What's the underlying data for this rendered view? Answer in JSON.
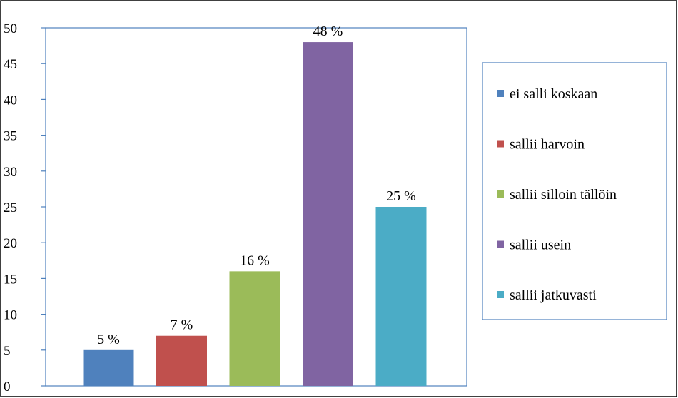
{
  "chart_data": {
    "type": "bar",
    "title": "",
    "xlabel": "",
    "ylabel": "",
    "ylim": [
      0,
      50
    ],
    "yticks": [
      0,
      5,
      10,
      15,
      20,
      25,
      30,
      35,
      40,
      45,
      50
    ],
    "grid": false,
    "legend_position": "right",
    "categories": [
      "ei salli koskaan",
      "sallii harvoin",
      "sallii silloin tällöin",
      "sallii usein",
      "sallii jatkuvasti"
    ],
    "values": [
      5,
      7,
      16,
      48,
      25
    ],
    "data_labels": [
      "5 %",
      "7 %",
      "16 %",
      "48 %",
      "25 %"
    ],
    "colors": [
      "#4F81BD",
      "#C0504D",
      "#9BBB59",
      "#8064A2",
      "#4BACC6"
    ]
  }
}
